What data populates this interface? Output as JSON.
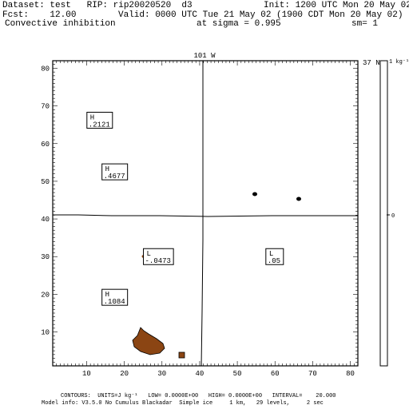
{
  "header": {
    "dataset": "Dataset: test   RIP: rip20020520  d3",
    "init": "Init: 1200 UTC Mon 20 May 02",
    "fcst": "Fcst:    12.00",
    "valid": "Valid: 0000 UTC Tue 21 May 02 (1900 CDT Mon 20 May 02)",
    "field": "Convective inhibition",
    "sigma": "at sigma = 0.995",
    "sm": "sm= 1"
  },
  "map": {
    "top_label": "101 W",
    "right_label": "37 N",
    "x_ticks": [
      "10",
      "20",
      "30",
      "40",
      "50",
      "60",
      "70",
      "80"
    ],
    "y_ticks": [
      "10",
      "20",
      "30",
      "40",
      "50",
      "60",
      "70",
      "80"
    ],
    "x_range": [
      1,
      82
    ],
    "y_range": [
      1,
      82
    ],
    "highs_lows": [
      {
        "type": "H",
        "value": ".2121",
        "x": 10.5,
        "y": 66.2
      },
      {
        "type": "H",
        "value": ".4677",
        "x": 14.5,
        "y": 52.5
      },
      {
        "type": "L",
        "value": "-.0473",
        "x": 25.5,
        "y": 30.0
      },
      {
        "type": "L",
        "value": ".05",
        "x": 58.0,
        "y": 30.0
      },
      {
        "type": "H",
        "value": ".1084",
        "x": 14.5,
        "y": 19.2
      }
    ],
    "shaded_color": "#8b4513",
    "contour_color": "#000000"
  },
  "colorbar": {
    "top_label": "1 kg⁻¹",
    "mid_label": "0"
  },
  "footer": {
    "contours": "CONTOURS:  UNITS=J kg⁻¹   LOW= 0.0000E+00   HIGH= 0.0000E+00   INTERVAL=    20.000",
    "model": "Model info: V3.5.0 No Cumulus Blackadar  Simple ice     1 km,   29 levels,     2 sec"
  }
}
